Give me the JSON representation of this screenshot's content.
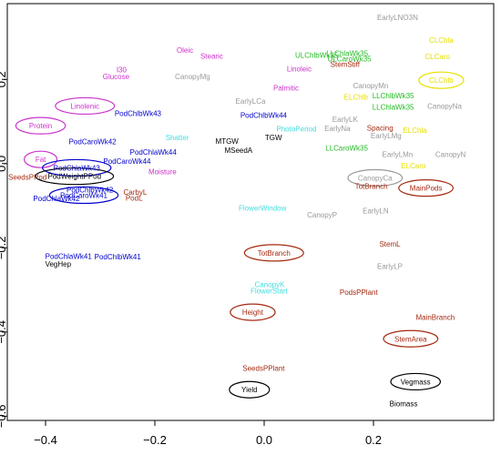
{
  "chart_data": {
    "type": "scatter",
    "title": "",
    "xlabel": "",
    "ylabel": "",
    "xlim": [
      -0.47,
      0.42
    ],
    "ylim": [
      -0.61,
      0.38
    ],
    "grid": false,
    "xticks": [
      {
        "v": -0.4,
        "label": "−0.4"
      },
      {
        "v": -0.2,
        "label": "−0.2"
      },
      {
        "v": 0.0,
        "label": "0.0"
      },
      {
        "v": 0.2,
        "label": "0.2"
      }
    ],
    "yticks": [
      {
        "v": -0.6,
        "label": "−0.6"
      },
      {
        "v": -0.4,
        "label": "−0.4"
      },
      {
        "v": -0.2,
        "label": "−0.2"
      },
      {
        "v": 0.0,
        "label": "0.0"
      },
      {
        "v": 0.2,
        "label": "0.2"
      }
    ],
    "colors": {
      "black": "#000000",
      "gray": "#999999",
      "green": "#22bb22",
      "yellow": "#e8e000",
      "magenta": "#cc33cc",
      "blue": "#0000cc",
      "cyan": "#44dddd",
      "brown": "#a52a10"
    },
    "points": [
      {
        "label": "EarlyLNO3N",
        "x": 0.244,
        "y": 0.348,
        "color": "gray",
        "circled": false
      },
      {
        "label": "CLChla",
        "x": 0.324,
        "y": 0.294,
        "color": "yellow",
        "circled": false
      },
      {
        "label": "CLCaro",
        "x": 0.317,
        "y": 0.255,
        "color": "yellow",
        "circled": false
      },
      {
        "label": "CLChlb",
        "x": 0.324,
        "y": 0.198,
        "color": "yellow",
        "circled": true
      },
      {
        "label": "ULChlbWk35",
        "x": 0.096,
        "y": 0.258,
        "color": "green",
        "circled": false
      },
      {
        "label": "LLChlaWk35",
        "x": 0.152,
        "y": 0.262,
        "color": "green",
        "circled": false
      },
      {
        "label": "ULCaroWk35",
        "x": 0.156,
        "y": 0.249,
        "color": "green",
        "circled": false
      },
      {
        "label": "StemStiff",
        "x": 0.148,
        "y": 0.236,
        "color": "brown",
        "circled": false
      },
      {
        "label": "LLChlbWk35",
        "x": 0.236,
        "y": 0.162,
        "color": "green",
        "circled": false
      },
      {
        "label": "ELChlb",
        "x": 0.168,
        "y": 0.158,
        "color": "yellow",
        "circled": false
      },
      {
        "label": "CanopyMn",
        "x": 0.195,
        "y": 0.185,
        "color": "gray",
        "circled": false
      },
      {
        "label": "CanopyNa",
        "x": 0.33,
        "y": 0.137,
        "color": "gray",
        "circled": false
      },
      {
        "label": "LLChlaWk35",
        "x": 0.236,
        "y": 0.135,
        "color": "green",
        "circled": false
      },
      {
        "label": "EarlyLK",
        "x": 0.148,
        "y": 0.106,
        "color": "gray",
        "circled": false
      },
      {
        "label": "EarlyNa",
        "x": 0.134,
        "y": 0.084,
        "color": "gray",
        "circled": false
      },
      {
        "label": "EarlyLMg",
        "x": 0.223,
        "y": 0.067,
        "color": "gray",
        "circled": false
      },
      {
        "label": "Spacing",
        "x": 0.212,
        "y": 0.085,
        "color": "brown",
        "circled": false
      },
      {
        "label": "ELChla",
        "x": 0.276,
        "y": 0.08,
        "color": "yellow",
        "circled": false
      },
      {
        "label": "LLCaroWk35",
        "x": 0.151,
        "y": 0.037,
        "color": "green",
        "circled": false
      },
      {
        "label": "EarlyLMn",
        "x": 0.244,
        "y": 0.022,
        "color": "gray",
        "circled": false
      },
      {
        "label": "CanopyN",
        "x": 0.341,
        "y": 0.022,
        "color": "gray",
        "circled": false
      },
      {
        "label": "ELCaro",
        "x": 0.273,
        "y": -0.005,
        "color": "yellow",
        "circled": false
      },
      {
        "label": "CanopyCa",
        "x": 0.203,
        "y": -0.034,
        "color": "gray",
        "circled": true
      },
      {
        "label": "TotBranch",
        "x": 0.196,
        "y": -0.053,
        "color": "brown",
        "circled": false
      },
      {
        "label": "MainPods",
        "x": 0.296,
        "y": -0.058,
        "color": "brown",
        "circled": true
      },
      {
        "label": "CanopyP",
        "x": 0.106,
        "y": -0.121,
        "color": "gray",
        "circled": false
      },
      {
        "label": "EarlyLN",
        "x": 0.204,
        "y": -0.112,
        "color": "gray",
        "circled": false
      },
      {
        "label": "StemL",
        "x": 0.23,
        "y": -0.191,
        "color": "brown",
        "circled": false
      },
      {
        "label": "EarlyLP",
        "x": 0.23,
        "y": -0.244,
        "color": "gray",
        "circled": false
      },
      {
        "label": "PodsPPlant",
        "x": 0.173,
        "y": -0.305,
        "color": "brown",
        "circled": false
      },
      {
        "label": "MainBranch",
        "x": 0.313,
        "y": -0.365,
        "color": "brown",
        "circled": false
      },
      {
        "label": "StemArea",
        "x": 0.268,
        "y": -0.416,
        "color": "brown",
        "circled": true
      },
      {
        "label": "Vegmass",
        "x": 0.277,
        "y": -0.518,
        "color": "black",
        "circled": true
      },
      {
        "label": "Biomass",
        "x": 0.255,
        "y": -0.57,
        "color": "black",
        "circled": false
      },
      {
        "label": "Oleic",
        "x": -0.145,
        "y": 0.27,
        "color": "magenta",
        "circled": false
      },
      {
        "label": "Stearic",
        "x": -0.096,
        "y": 0.256,
        "color": "magenta",
        "circled": false
      },
      {
        "label": "I30",
        "x": -0.261,
        "y": 0.223,
        "color": "magenta",
        "circled": false
      },
      {
        "label": "Glucose",
        "x": -0.271,
        "y": 0.207,
        "color": "magenta",
        "circled": false
      },
      {
        "label": "CanopyMg",
        "x": -0.131,
        "y": 0.207,
        "color": "gray",
        "circled": false
      },
      {
        "label": "Linoleic",
        "x": 0.064,
        "y": 0.225,
        "color": "magenta",
        "circled": false
      },
      {
        "label": "Palmitic",
        "x": 0.04,
        "y": 0.18,
        "color": "magenta",
        "circled": false
      },
      {
        "label": "EarlyLCa",
        "x": -0.025,
        "y": 0.149,
        "color": "gray",
        "circled": false
      },
      {
        "label": "Linolenic",
        "x": -0.328,
        "y": 0.137,
        "color": "magenta",
        "circled": true
      },
      {
        "label": "PodChlbWk43",
        "x": -0.231,
        "y": 0.119,
        "color": "blue",
        "circled": false
      },
      {
        "label": "PodChlbWk44",
        "x": -0.001,
        "y": 0.115,
        "color": "blue",
        "circled": false
      },
      {
        "label": "Protein",
        "x": -0.409,
        "y": 0.09,
        "color": "magenta",
        "circled": true
      },
      {
        "label": "PhotoPeriod",
        "x": 0.059,
        "y": 0.083,
        "color": "cyan",
        "circled": false
      },
      {
        "label": "Shatter",
        "x": -0.159,
        "y": 0.062,
        "color": "cyan",
        "circled": false
      },
      {
        "label": "MTGW",
        "x": -0.068,
        "y": 0.054,
        "color": "black",
        "circled": false
      },
      {
        "label": "TGW",
        "x": 0.017,
        "y": 0.062,
        "color": "black",
        "circled": false
      },
      {
        "label": "MSeedA",
        "x": -0.047,
        "y": 0.032,
        "color": "black",
        "circled": false
      },
      {
        "label": "PodCaroWk42",
        "x": -0.314,
        "y": 0.052,
        "color": "blue",
        "circled": false
      },
      {
        "label": "PodChlaWk44",
        "x": -0.203,
        "y": 0.028,
        "color": "blue",
        "circled": false
      },
      {
        "label": "PodCaroWk44",
        "x": -0.251,
        "y": 0.006,
        "color": "blue",
        "circled": false
      },
      {
        "label": "Fat",
        "x": -0.409,
        "y": 0.01,
        "color": "magenta",
        "circled": true
      },
      {
        "label": "PodChlaWk43",
        "x": -0.343,
        "y": -0.01,
        "color": "blue",
        "circled": true
      },
      {
        "label": "Moisture",
        "x": -0.186,
        "y": -0.019,
        "color": "magenta",
        "circled": false
      },
      {
        "label": "PodWeightPPod",
        "x": -0.347,
        "y": -0.03,
        "color": "black",
        "circled": true
      },
      {
        "label": "SeedsPPod",
        "x": -0.433,
        "y": -0.032,
        "color": "brown",
        "circled": false
      },
      {
        "label": "PodChlbWk42",
        "x": -0.319,
        "y": -0.062,
        "color": "blue",
        "circled": false
      },
      {
        "label": "PodCaroWk41",
        "x": -0.33,
        "y": -0.075,
        "color": "blue",
        "circled": true
      },
      {
        "label": "PodChlaWk42",
        "x": -0.38,
        "y": -0.083,
        "color": "blue",
        "circled": false
      },
      {
        "label": "CarbyL",
        "x": -0.236,
        "y": -0.067,
        "color": "brown",
        "circled": false
      },
      {
        "label": "PodL",
        "x": -0.238,
        "y": -0.082,
        "color": "brown",
        "circled": false
      },
      {
        "label": "FlowerWindow",
        "x": -0.003,
        "y": -0.105,
        "color": "cyan",
        "circled": false
      },
      {
        "label": "PodChlaWk41",
        "x": -0.358,
        "y": -0.22,
        "color": "blue",
        "circled": false
      },
      {
        "label": "PodChlbWk41",
        "x": -0.268,
        "y": -0.221,
        "color": "blue",
        "circled": false
      },
      {
        "label": "VegHep",
        "x": -0.377,
        "y": -0.238,
        "color": "black",
        "circled": false
      },
      {
        "label": "TotBranch",
        "x": 0.018,
        "y": -0.212,
        "color": "brown",
        "circled": true
      },
      {
        "label": "CanopyK",
        "x": 0.01,
        "y": -0.287,
        "color": "cyan",
        "circled": false
      },
      {
        "label": "FlowerStart",
        "x": 0.009,
        "y": -0.302,
        "color": "cyan",
        "circled": false
      },
      {
        "label": "Height",
        "x": -0.021,
        "y": -0.353,
        "color": "brown",
        "circled": true
      },
      {
        "label": "SeedsPPlant",
        "x": -0.001,
        "y": -0.486,
        "color": "brown",
        "circled": false
      },
      {
        "label": "Yield",
        "x": -0.027,
        "y": -0.537,
        "color": "black",
        "circled": true
      }
    ]
  }
}
